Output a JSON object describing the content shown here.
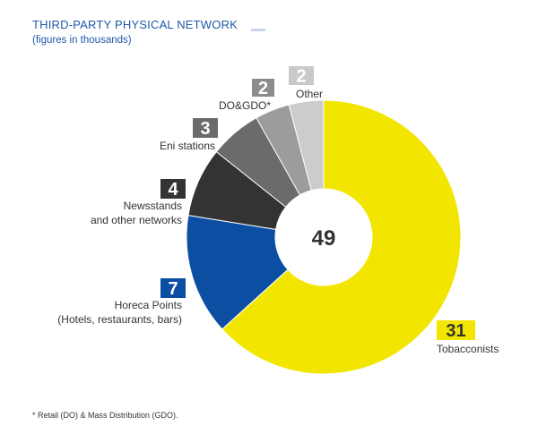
{
  "header": {
    "title": "THIRD-PARTY PHYSICAL NETWORK",
    "subtitle": "(figures in thousands)"
  },
  "footnote": "* Retail (DO) & Mass Distribution (GDO).",
  "chart_data": {
    "type": "pie",
    "donut": true,
    "center_label": "49",
    "slices": [
      {
        "value": 31,
        "label_lines": [
          "Tobacconists"
        ],
        "color": "#f2e600",
        "badge_color": "#f2e600",
        "badge_text_color": "#333333"
      },
      {
        "value": 7,
        "label_lines": [
          "Horeca Points",
          "(Hotels, restaurants, bars)"
        ],
        "color": "#0b4ea2",
        "badge_color": "#0b4ea2",
        "badge_text_color": "#ffffff"
      },
      {
        "value": 4,
        "label_lines": [
          "Newsstands",
          "and other networks"
        ],
        "color": "#333333",
        "badge_color": "#333333",
        "badge_text_color": "#ffffff"
      },
      {
        "value": 3,
        "label_lines": [
          "Eni stations"
        ],
        "color": "#6b6b6b",
        "badge_color": "#6b6b6b",
        "badge_text_color": "#ffffff"
      },
      {
        "value": 2,
        "label_lines": [
          "DO&GDO*"
        ],
        "color": "#9c9c9c",
        "badge_color": "#8c8c8c",
        "badge_text_color": "#ffffff"
      },
      {
        "value": 2,
        "label_lines": [
          "Other"
        ],
        "color": "#cccccc",
        "badge_color": "#c9c9c9",
        "badge_text_color": "#ffffff"
      }
    ]
  }
}
